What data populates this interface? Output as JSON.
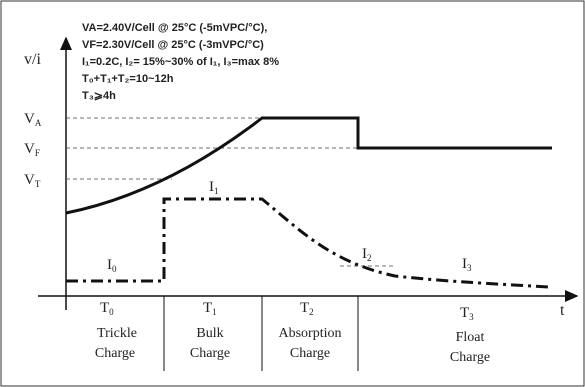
{
  "notes": [
    "VA=2.40V/Cell @ 25°C (-5mVPC/°C),",
    "VF=2.30V/Cell @ 25°C (-3mVPC/°C)",
    "I₁=0.2C, I₂= 15%~30% of I₁, I₃=max 8%",
    "T₀+T₁+T₂=10~12h",
    "T₃⩾4h"
  ],
  "axes": {
    "y_label": "v/i",
    "x_label": "t"
  },
  "levels": [
    {
      "main": "V",
      "sub": "A"
    },
    {
      "main": "V",
      "sub": "F"
    },
    {
      "main": "V",
      "sub": "T"
    }
  ],
  "current_labels": [
    {
      "main": "I",
      "sub": "0"
    },
    {
      "main": "I",
      "sub": "1"
    },
    {
      "main": "I",
      "sub": "2"
    },
    {
      "main": "I",
      "sub": "3"
    }
  ],
  "periods": [
    {
      "main": "T",
      "sub": "0"
    },
    {
      "main": "T",
      "sub": "1"
    },
    {
      "main": "T",
      "sub": "2"
    },
    {
      "main": "T",
      "sub": "3"
    }
  ],
  "stages": [
    {
      "line1": "Trickle",
      "line2": "Charge"
    },
    {
      "line1": "Bulk",
      "line2": "Charge"
    },
    {
      "line1": "Absorption",
      "line2": "Charge"
    },
    {
      "line1": "Float",
      "line2": "Charge"
    }
  ]
}
